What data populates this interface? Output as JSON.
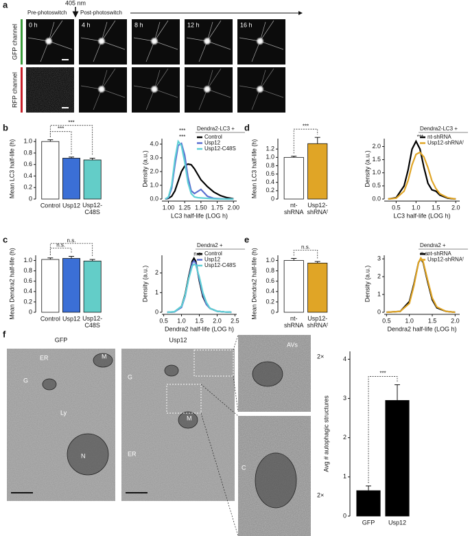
{
  "panel_a": {
    "label": "a",
    "wavelength": "405 nm",
    "pre": "Pre-photoswitch",
    "post": "Post-photoswitch",
    "times": [
      "0 h",
      "4 h",
      "8 h",
      "12 h",
      "16 h"
    ],
    "channels": [
      "GFP channel",
      "RFP channel"
    ]
  },
  "panel_f": {
    "label": "f",
    "images": [
      "GFP",
      "Usp12"
    ],
    "em_labels": [
      "ER",
      "M",
      "G",
      "Ly",
      "N",
      "G",
      "M",
      "ER",
      "AVs",
      "C"
    ],
    "zoom": [
      "2×",
      "2×"
    ]
  },
  "chart_data": [
    {
      "type": "bar",
      "label": "b",
      "ylabel": "Mean LC3 half-life (h)",
      "categories": [
        "Control",
        "Usp12",
        "Usp12-\nC48S"
      ],
      "values": [
        1.0,
        0.71,
        0.68
      ],
      "errors": [
        0.03,
        0.02,
        0.03
      ],
      "colors": [
        "#ffffff",
        "#3b6fd6",
        "#63cdc8"
      ],
      "ylim": [
        0,
        1.05
      ],
      "yticks": [
        0,
        0.2,
        0.4,
        0.6,
        0.8,
        {
          "value": 1,
          "label": "1.0"
        }
      ],
      "annotations": [
        "***",
        "***"
      ]
    },
    {
      "type": "density",
      "ylabel": "Density (a.u.)",
      "xlabel": "LC3 half-life (LOG h)",
      "legend_title": "Dendra2-LC3 +",
      "x": [
        0.95,
        1.0,
        1.05,
        1.1,
        1.15,
        1.2,
        1.25,
        1.3,
        1.35,
        1.4,
        1.45,
        1.5,
        1.6,
        1.7,
        1.8,
        1.9,
        2.0
      ],
      "series": [
        {
          "name": "Control",
          "color": "#000000",
          "values": [
            0,
            0.05,
            0.2,
            0.6,
            1.3,
            2.0,
            2.4,
            2.55,
            2.5,
            2.2,
            1.8,
            1.4,
            0.9,
            0.5,
            0.25,
            0.1,
            0.02
          ]
        },
        {
          "name": "Usp12",
          "color": "#5a6fd0",
          "values": [
            0,
            0.1,
            0.8,
            2.5,
            3.9,
            4.05,
            3.2,
            1.6,
            0.6,
            0.4,
            0.55,
            0.7,
            0.2,
            0.05,
            0.02,
            0,
            0
          ]
        },
        {
          "name": "Usp12-C48S",
          "color": "#5fd0d6",
          "values": [
            0,
            0.15,
            1.0,
            2.9,
            4.2,
            3.9,
            2.7,
            1.2,
            0.4,
            0.15,
            0.1,
            0.08,
            0.05,
            0.02,
            0,
            0,
            0
          ]
        }
      ],
      "xlim": [
        0.9,
        2.05
      ],
      "ylim": [
        0,
        4.4
      ],
      "xticks": [
        {
          "value": 1,
          "label": "1.00"
        },
        1.25,
        {
          "value": 1.5,
          "label": "1.50"
        },
        1.75,
        {
          "value": 2,
          "label": "2.00"
        }
      ],
      "yticks": [
        {
          "value": 0,
          "label": "0.0"
        },
        {
          "value": 1,
          "label": "1.0"
        },
        {
          "value": 2,
          "label": "2.0"
        },
        {
          "value": 3,
          "label": "3.0"
        },
        {
          "value": 4,
          "label": "4.0"
        }
      ],
      "annotations": [
        "***",
        "***"
      ]
    },
    {
      "type": "bar",
      "label": "d",
      "ylabel": "Mean LC3 half-life (h)",
      "categories": [
        "nt-\nshRNA",
        "Usp12-\nshRNAᶠ"
      ],
      "values": [
        1.0,
        1.33
      ],
      "errors": [
        0.03,
        0.15
      ],
      "colors": [
        "#ffffff",
        "#e0a526"
      ],
      "ylim": [
        0,
        1.45
      ],
      "yticks": [
        0,
        0.2,
        0.4,
        0.6,
        0.8,
        {
          "value": 1,
          "label": "1.0"
        },
        1.2
      ],
      "annotations": [
        "***"
      ]
    },
    {
      "type": "density",
      "ylabel": "Density (a.u.)",
      "xlabel": "LC3 half-life (LOG h)",
      "legend_title": "Dendra2-LC3 +",
      "x": [
        0.3,
        0.5,
        0.7,
        0.8,
        0.9,
        1.0,
        1.1,
        1.2,
        1.3,
        1.4,
        1.5,
        1.6,
        1.8,
        2.0
      ],
      "series": [
        {
          "name": "nt-shRNA",
          "color": "#000000",
          "values": [
            0,
            0.05,
            0.5,
            1.1,
            1.9,
            2.2,
            1.9,
            1.2,
            0.6,
            0.35,
            0.3,
            0.15,
            0.03,
            0
          ]
        },
        {
          "name": "Usp12-shRNAᶠ",
          "color": "#e0a526",
          "values": [
            0,
            0.03,
            0.3,
            0.7,
            1.3,
            1.7,
            1.78,
            1.6,
            1.2,
            0.7,
            0.4,
            0.2,
            0.05,
            0
          ]
        }
      ],
      "xlim": [
        0.2,
        2.1
      ],
      "ylim": [
        0,
        2.3
      ],
      "xticks": [
        0.5,
        {
          "value": 1,
          "label": "1.0"
        },
        1.5,
        {
          "value": 2,
          "label": "2.0"
        }
      ],
      "yticks": [
        {
          "value": 0,
          "label": "0.0"
        },
        0.5,
        {
          "value": 1,
          "label": "1.0"
        },
        1.5,
        {
          "value": 2,
          "label": "2.0"
        }
      ],
      "annotations": [
        "***"
      ]
    },
    {
      "type": "bar",
      "label": "c",
      "ylabel": "Mean Dendra2 half-life (h)",
      "categories": [
        "Control",
        "Usp12",
        "Usp12-\nC48S"
      ],
      "values": [
        1.02,
        1.04,
        0.99
      ],
      "errors": [
        0.03,
        0.04,
        0.03
      ],
      "colors": [
        "#ffffff",
        "#3b6fd6",
        "#63cdc8"
      ],
      "ylim": [
        0,
        1.1
      ],
      "yticks": [
        0,
        0.2,
        0.4,
        0.6,
        0.8,
        {
          "value": 1,
          "label": "1.0"
        }
      ],
      "annotations": [
        "n.s.",
        "n.s."
      ]
    },
    {
      "type": "density",
      "ylabel": "Density (a.u.)",
      "xlabel": "Dendra2 half-life (LOG h)",
      "legend_title": "Dendra2 +",
      "x": [
        0.6,
        0.8,
        1.0,
        1.1,
        1.2,
        1.3,
        1.35,
        1.4,
        1.5,
        1.6,
        1.7,
        1.8,
        2.0,
        2.2,
        2.4
      ],
      "series": [
        {
          "name": "Control",
          "color": "#000000",
          "values": [
            0,
            0.02,
            0.3,
            0.9,
            1.8,
            2.6,
            2.75,
            2.6,
            1.6,
            0.8,
            0.4,
            0.2,
            0.05,
            0.02,
            0
          ]
        },
        {
          "name": "Usp12",
          "color": "#5a6fd0",
          "values": [
            0,
            0.02,
            0.25,
            0.8,
            1.7,
            2.5,
            2.62,
            2.5,
            1.7,
            0.9,
            0.4,
            0.2,
            0.05,
            0.02,
            0
          ]
        },
        {
          "name": "Usp12-C48S",
          "color": "#5fd0d6",
          "values": [
            0,
            0.03,
            0.3,
            0.85,
            1.7,
            2.35,
            2.45,
            2.4,
            1.8,
            1.0,
            0.5,
            0.2,
            0.05,
            0.02,
            0
          ]
        }
      ],
      "xlim": [
        0.45,
        2.55
      ],
      "ylim": [
        0,
        2.9
      ],
      "xticks": [
        0.5,
        {
          "value": 1,
          "label": "1.0"
        },
        1.5,
        {
          "value": 2,
          "label": "2.0"
        },
        2.5
      ],
      "yticks": [
        0,
        1,
        2
      ],
      "annotations": [
        "n.s."
      ]
    },
    {
      "type": "bar",
      "label": "e",
      "ylabel": "Mean Dendra2  half-life (h)",
      "categories": [
        "nt-\nshRNA",
        "Usp12-\nshRNAᶠ"
      ],
      "values": [
        1.0,
        0.95
      ],
      "errors": [
        0.04,
        0.03
      ],
      "colors": [
        "#ffffff",
        "#e0a526"
      ],
      "ylim": [
        0,
        1.1
      ],
      "yticks": [
        0,
        0.2,
        0.4,
        0.6,
        0.8,
        {
          "value": 1,
          "label": "1.0"
        }
      ],
      "annotations": [
        "n.s."
      ]
    },
    {
      "type": "density",
      "ylabel": "Density (a.u.)",
      "xlabel": "Dendra2 half-life (LOG h)",
      "legend_title": "Dendra2 +",
      "x": [
        0.5,
        0.8,
        1.0,
        1.1,
        1.2,
        1.25,
        1.3,
        1.4,
        1.5,
        1.6,
        1.8,
        2.0
      ],
      "series": [
        {
          "name": "nt-shRNA",
          "color": "#000000",
          "values": [
            0,
            0.05,
            0.6,
            1.6,
            2.8,
            3.0,
            2.8,
            1.7,
            0.7,
            0.25,
            0.05,
            0
          ]
        },
        {
          "name": "Usp12-shRNAᶠ",
          "color": "#e0a526",
          "values": [
            0,
            0.05,
            0.5,
            1.5,
            2.8,
            3.05,
            2.85,
            1.8,
            0.8,
            0.3,
            0.05,
            0
          ]
        }
      ],
      "xlim": [
        0.45,
        2.1
      ],
      "ylim": [
        0,
        3.2
      ],
      "xticks": [
        0.5,
        {
          "value": 1,
          "label": "1.0"
        },
        1.5,
        {
          "value": 2,
          "label": "2.0"
        }
      ],
      "yticks": [
        0,
        1,
        2,
        3
      ],
      "annotations": [
        "n.s."
      ]
    },
    {
      "type": "bar",
      "ylabel": "Avg # autophagic structures",
      "categories": [
        "GFP",
        "Usp12"
      ],
      "values": [
        0.65,
        2.95
      ],
      "errors": [
        0.12,
        0.4
      ],
      "colors": [
        "#000000",
        "#000000"
      ],
      "ylim": [
        0,
        4.2
      ],
      "yticks": [
        0,
        1,
        2,
        3,
        4
      ],
      "annotations": [
        "***"
      ]
    }
  ]
}
